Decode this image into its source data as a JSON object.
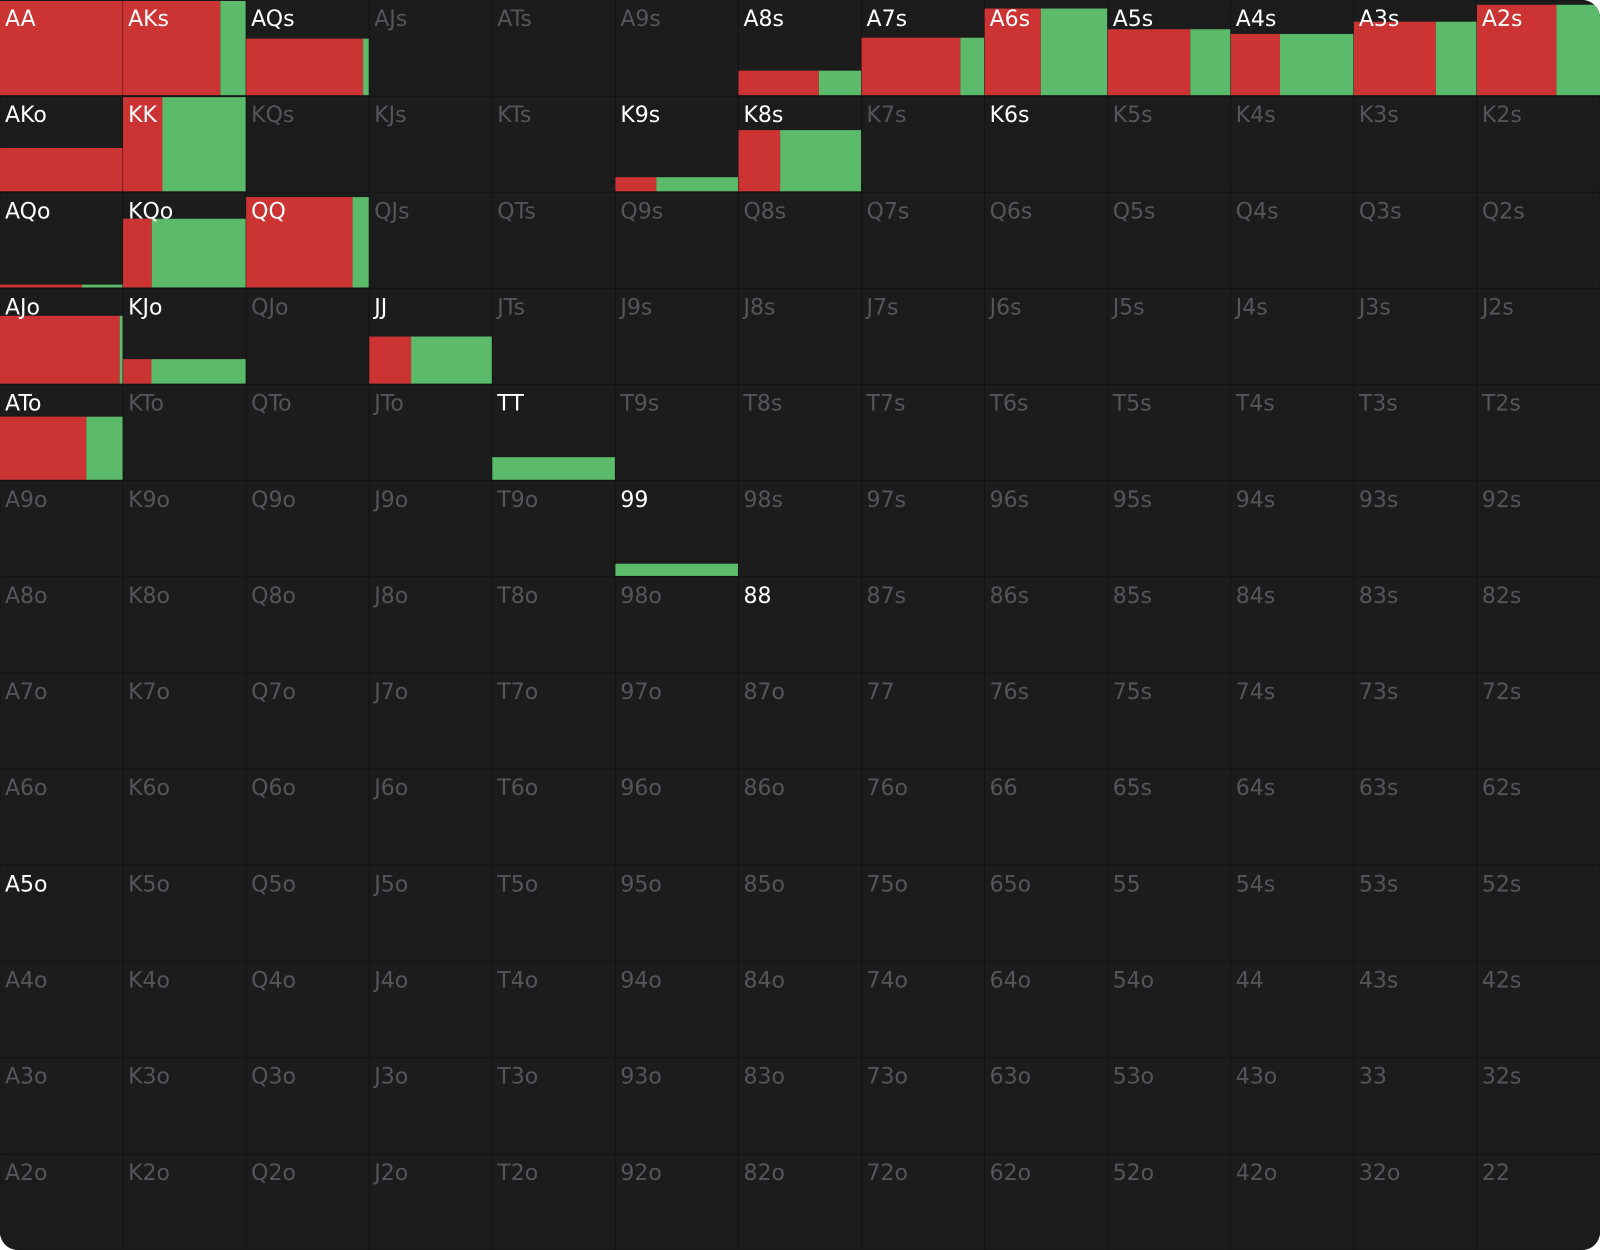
{
  "colors": [
    "#cc3333",
    "#5bbb6a"
  ],
  "active_text": "#ffffff",
  "inactive_text": "#555557",
  "rows": [
    [
      {
        "label": "AA",
        "values": [
          100,
          0
        ],
        "active": true
      },
      {
        "label": "AKs",
        "values": [
          79,
          21
        ],
        "active": true
      },
      {
        "label": "AQs",
        "values": [
          57,
          3
        ],
        "active": true
      },
      {
        "label": "AJs"
      },
      {
        "label": "ATs"
      },
      {
        "label": "A9s"
      },
      {
        "label": "A8s",
        "values": [
          17,
          9
        ],
        "active": true
      },
      {
        "label": "A7s",
        "values": [
          49,
          12
        ],
        "active": true
      },
      {
        "label": "A6s",
        "values": [
          42,
          50
        ],
        "active": true
      },
      {
        "label": "A5s",
        "values": [
          47,
          23
        ],
        "active": true
      },
      {
        "label": "A4s",
        "values": [
          26,
          39
        ],
        "active": true
      },
      {
        "label": "A3s",
        "values": [
          52,
          26
        ],
        "active": true
      },
      {
        "label": "A2s",
        "values": [
          62,
          34
        ],
        "active": true
      }
    ],
    [
      {
        "label": "AKo",
        "values": [
          46,
          0
        ],
        "active": true
      },
      {
        "label": "KK",
        "values": [
          32,
          68
        ],
        "active": true
      },
      {
        "label": "KQs"
      },
      {
        "label": "KJs"
      },
      {
        "label": "KTs"
      },
      {
        "label": "K9s",
        "values": [
          5,
          10
        ],
        "active": true
      },
      {
        "label": "K8s",
        "values": [
          22,
          43
        ],
        "active": true
      },
      {
        "label": "K7s"
      },
      {
        "label": "K6s",
        "active": true
      },
      {
        "label": "K5s"
      },
      {
        "label": "K4s"
      },
      {
        "label": "K3s"
      },
      {
        "label": "K2s"
      }
    ],
    [
      {
        "label": "AQo",
        "values": [
          2,
          1
        ],
        "active": true
      },
      {
        "label": "KQo",
        "values": [
          17,
          56
        ],
        "active": true
      },
      {
        "label": "QQ",
        "values": [
          83,
          13
        ],
        "active": true
      },
      {
        "label": "QJs"
      },
      {
        "label": "QTs"
      },
      {
        "label": "Q9s"
      },
      {
        "label": "Q8s"
      },
      {
        "label": "Q7s"
      },
      {
        "label": "Q6s"
      },
      {
        "label": "Q5s"
      },
      {
        "label": "Q4s"
      },
      {
        "label": "Q3s"
      },
      {
        "label": "Q2s"
      }
    ],
    [
      {
        "label": "AJo",
        "values": [
          70,
          2
        ],
        "active": true
      },
      {
        "label": "KJo",
        "values": [
          6,
          20
        ],
        "active": true
      },
      {
        "label": "QJo"
      },
      {
        "label": "JJ",
        "values": [
          17,
          33
        ],
        "active": true
      },
      {
        "label": "JTs"
      },
      {
        "label": "J9s"
      },
      {
        "label": "J8s"
      },
      {
        "label": "J7s"
      },
      {
        "label": "J6s"
      },
      {
        "label": "J5s"
      },
      {
        "label": "J4s"
      },
      {
        "label": "J3s"
      },
      {
        "label": "J2s"
      }
    ],
    [
      {
        "label": "ATo",
        "values": [
          47,
          20
        ],
        "active": true
      },
      {
        "label": "KTo"
      },
      {
        "label": "QTo"
      },
      {
        "label": "JTo"
      },
      {
        "label": "TT",
        "values": [
          0,
          24
        ],
        "active": true
      },
      {
        "label": "T9s"
      },
      {
        "label": "T8s"
      },
      {
        "label": "T7s"
      },
      {
        "label": "T6s"
      },
      {
        "label": "T5s"
      },
      {
        "label": "T4s"
      },
      {
        "label": "T3s"
      },
      {
        "label": "T2s"
      }
    ],
    [
      {
        "label": "A9o"
      },
      {
        "label": "K9o"
      },
      {
        "label": "Q9o"
      },
      {
        "label": "J9o"
      },
      {
        "label": "T9o"
      },
      {
        "label": "99",
        "values": [
          0,
          13
        ],
        "active": true
      },
      {
        "label": "98s"
      },
      {
        "label": "97s"
      },
      {
        "label": "96s"
      },
      {
        "label": "95s"
      },
      {
        "label": "94s"
      },
      {
        "label": "93s"
      },
      {
        "label": "92s"
      }
    ],
    [
      {
        "label": "A8o"
      },
      {
        "label": "K8o"
      },
      {
        "label": "Q8o"
      },
      {
        "label": "J8o"
      },
      {
        "label": "T8o"
      },
      {
        "label": "98o"
      },
      {
        "label": "88",
        "active": true
      },
      {
        "label": "87s"
      },
      {
        "label": "86s"
      },
      {
        "label": "85s"
      },
      {
        "label": "84s"
      },
      {
        "label": "83s"
      },
      {
        "label": "82s"
      }
    ],
    [
      {
        "label": "A7o"
      },
      {
        "label": "K7o"
      },
      {
        "label": "Q7o"
      },
      {
        "label": "J7o"
      },
      {
        "label": "T7o"
      },
      {
        "label": "97o"
      },
      {
        "label": "87o"
      },
      {
        "label": "77"
      },
      {
        "label": "76s"
      },
      {
        "label": "75s"
      },
      {
        "label": "74s"
      },
      {
        "label": "73s"
      },
      {
        "label": "72s"
      }
    ],
    [
      {
        "label": "A6o"
      },
      {
        "label": "K6o"
      },
      {
        "label": "Q6o"
      },
      {
        "label": "J6o"
      },
      {
        "label": "T6o"
      },
      {
        "label": "96o"
      },
      {
        "label": "86o"
      },
      {
        "label": "76o"
      },
      {
        "label": "66"
      },
      {
        "label": "65s"
      },
      {
        "label": "64s"
      },
      {
        "label": "63s"
      },
      {
        "label": "62s"
      }
    ],
    [
      {
        "label": "A5o",
        "active": true
      },
      {
        "label": "K5o"
      },
      {
        "label": "Q5o"
      },
      {
        "label": "J5o"
      },
      {
        "label": "T5o"
      },
      {
        "label": "95o"
      },
      {
        "label": "85o"
      },
      {
        "label": "75o"
      },
      {
        "label": "65o"
      },
      {
        "label": "55"
      },
      {
        "label": "54s"
      },
      {
        "label": "53s"
      },
      {
        "label": "52s"
      }
    ],
    [
      {
        "label": "A4o"
      },
      {
        "label": "K4o"
      },
      {
        "label": "Q4o"
      },
      {
        "label": "J4o"
      },
      {
        "label": "T4o"
      },
      {
        "label": "94o"
      },
      {
        "label": "84o"
      },
      {
        "label": "74o"
      },
      {
        "label": "64o"
      },
      {
        "label": "54o"
      },
      {
        "label": "44"
      },
      {
        "label": "43s"
      },
      {
        "label": "42s"
      }
    ],
    [
      {
        "label": "A3o"
      },
      {
        "label": "K3o"
      },
      {
        "label": "Q3o"
      },
      {
        "label": "J3o"
      },
      {
        "label": "T3o"
      },
      {
        "label": "93o"
      },
      {
        "label": "83o"
      },
      {
        "label": "73o"
      },
      {
        "label": "63o"
      },
      {
        "label": "53o"
      },
      {
        "label": "43o"
      },
      {
        "label": "33"
      },
      {
        "label": "32s"
      }
    ],
    [
      {
        "label": "A2o"
      },
      {
        "label": "K2o"
      },
      {
        "label": "Q2o"
      },
      {
        "label": "J2o"
      },
      {
        "label": "T2o"
      },
      {
        "label": "92o"
      },
      {
        "label": "82o"
      },
      {
        "label": "72o"
      },
      {
        "label": "62o"
      },
      {
        "label": "52o"
      },
      {
        "label": "42o"
      },
      {
        "label": "32o"
      },
      {
        "label": "22"
      }
    ]
  ]
}
